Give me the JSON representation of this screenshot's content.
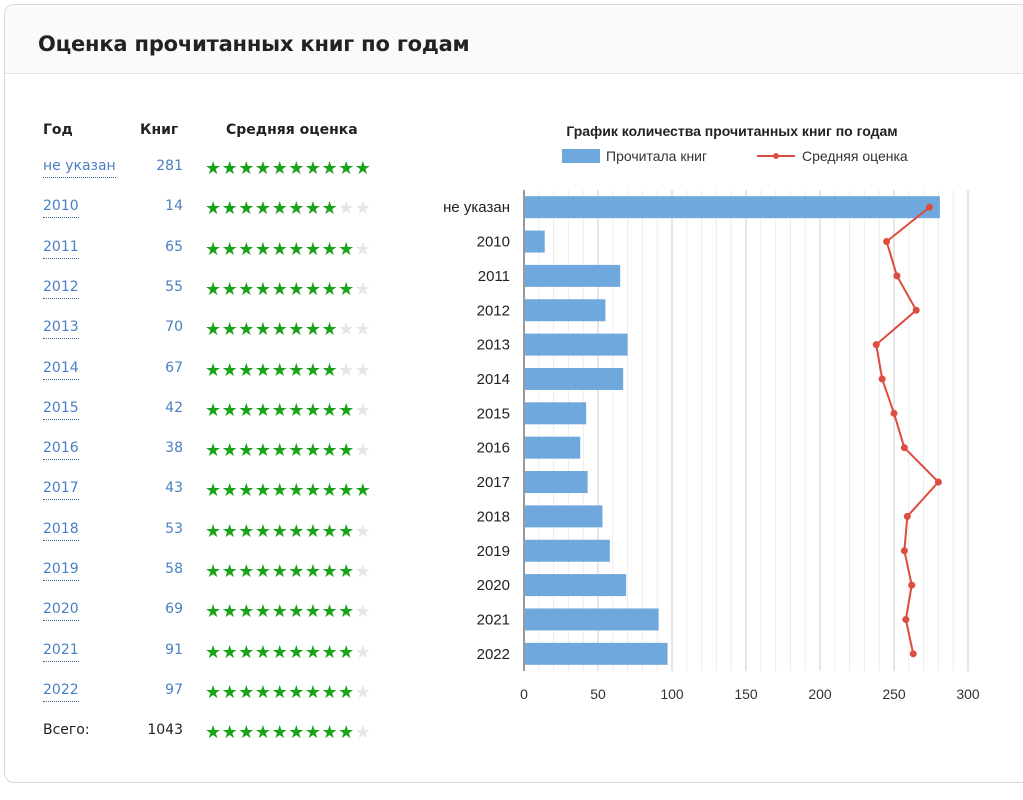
{
  "card": {
    "title": "Оценка прочитанных книг по годам"
  },
  "table": {
    "headers": {
      "year": "Год",
      "count": "Книг",
      "rating": "Средняя оценка"
    },
    "rows": [
      {
        "year": "не указан",
        "count": "281",
        "stars": 10
      },
      {
        "year": "2010",
        "count": "14",
        "stars": 8
      },
      {
        "year": "2011",
        "count": "65",
        "stars": 9
      },
      {
        "year": "2012",
        "count": "55",
        "stars": 9
      },
      {
        "year": "2013",
        "count": "70",
        "stars": 8
      },
      {
        "year": "2014",
        "count": "67",
        "stars": 8
      },
      {
        "year": "2015",
        "count": "42",
        "stars": 9
      },
      {
        "year": "2016",
        "count": "38",
        "stars": 9
      },
      {
        "year": "2017",
        "count": "43",
        "stars": 10
      },
      {
        "year": "2018",
        "count": "53",
        "stars": 9
      },
      {
        "year": "2019",
        "count": "58",
        "stars": 9
      },
      {
        "year": "2020",
        "count": "69",
        "stars": 9
      },
      {
        "year": "2021",
        "count": "91",
        "stars": 9
      },
      {
        "year": "2022",
        "count": "97",
        "stars": 9
      }
    ],
    "total": {
      "label": "Всего:",
      "count": "1043",
      "stars": 9
    },
    "star_glyph": "★",
    "star_max": 10
  },
  "colors": {
    "bar": "#6fa8dc",
    "line": "#dc4c3f",
    "star_on": "#1aa31a",
    "star_off": "#e6e6e6",
    "link": "#4a7fc1"
  },
  "chart_data": {
    "type": "bar",
    "orientation": "horizontal",
    "title": "График количества прочитанных книг по годам",
    "categories": [
      "не указан",
      "2010",
      "2011",
      "2012",
      "2013",
      "2014",
      "2015",
      "2016",
      "2017",
      "2018",
      "2019",
      "2020",
      "2021",
      "2022"
    ],
    "series": [
      {
        "name": "Прочитала книг",
        "kind": "bar",
        "values": [
          281,
          14,
          65,
          55,
          70,
          67,
          42,
          38,
          43,
          53,
          58,
          69,
          91,
          97
        ]
      },
      {
        "name": "Средняя оценка",
        "kind": "line",
        "values": [
          274,
          245,
          252,
          265,
          238,
          242,
          250,
          257,
          280,
          259,
          257,
          262,
          258,
          263
        ]
      }
    ],
    "xlim": [
      0,
      300
    ],
    "x_ticks": [
      0,
      50,
      100,
      150,
      200,
      250,
      300
    ],
    "grid": true,
    "legend": "top"
  }
}
